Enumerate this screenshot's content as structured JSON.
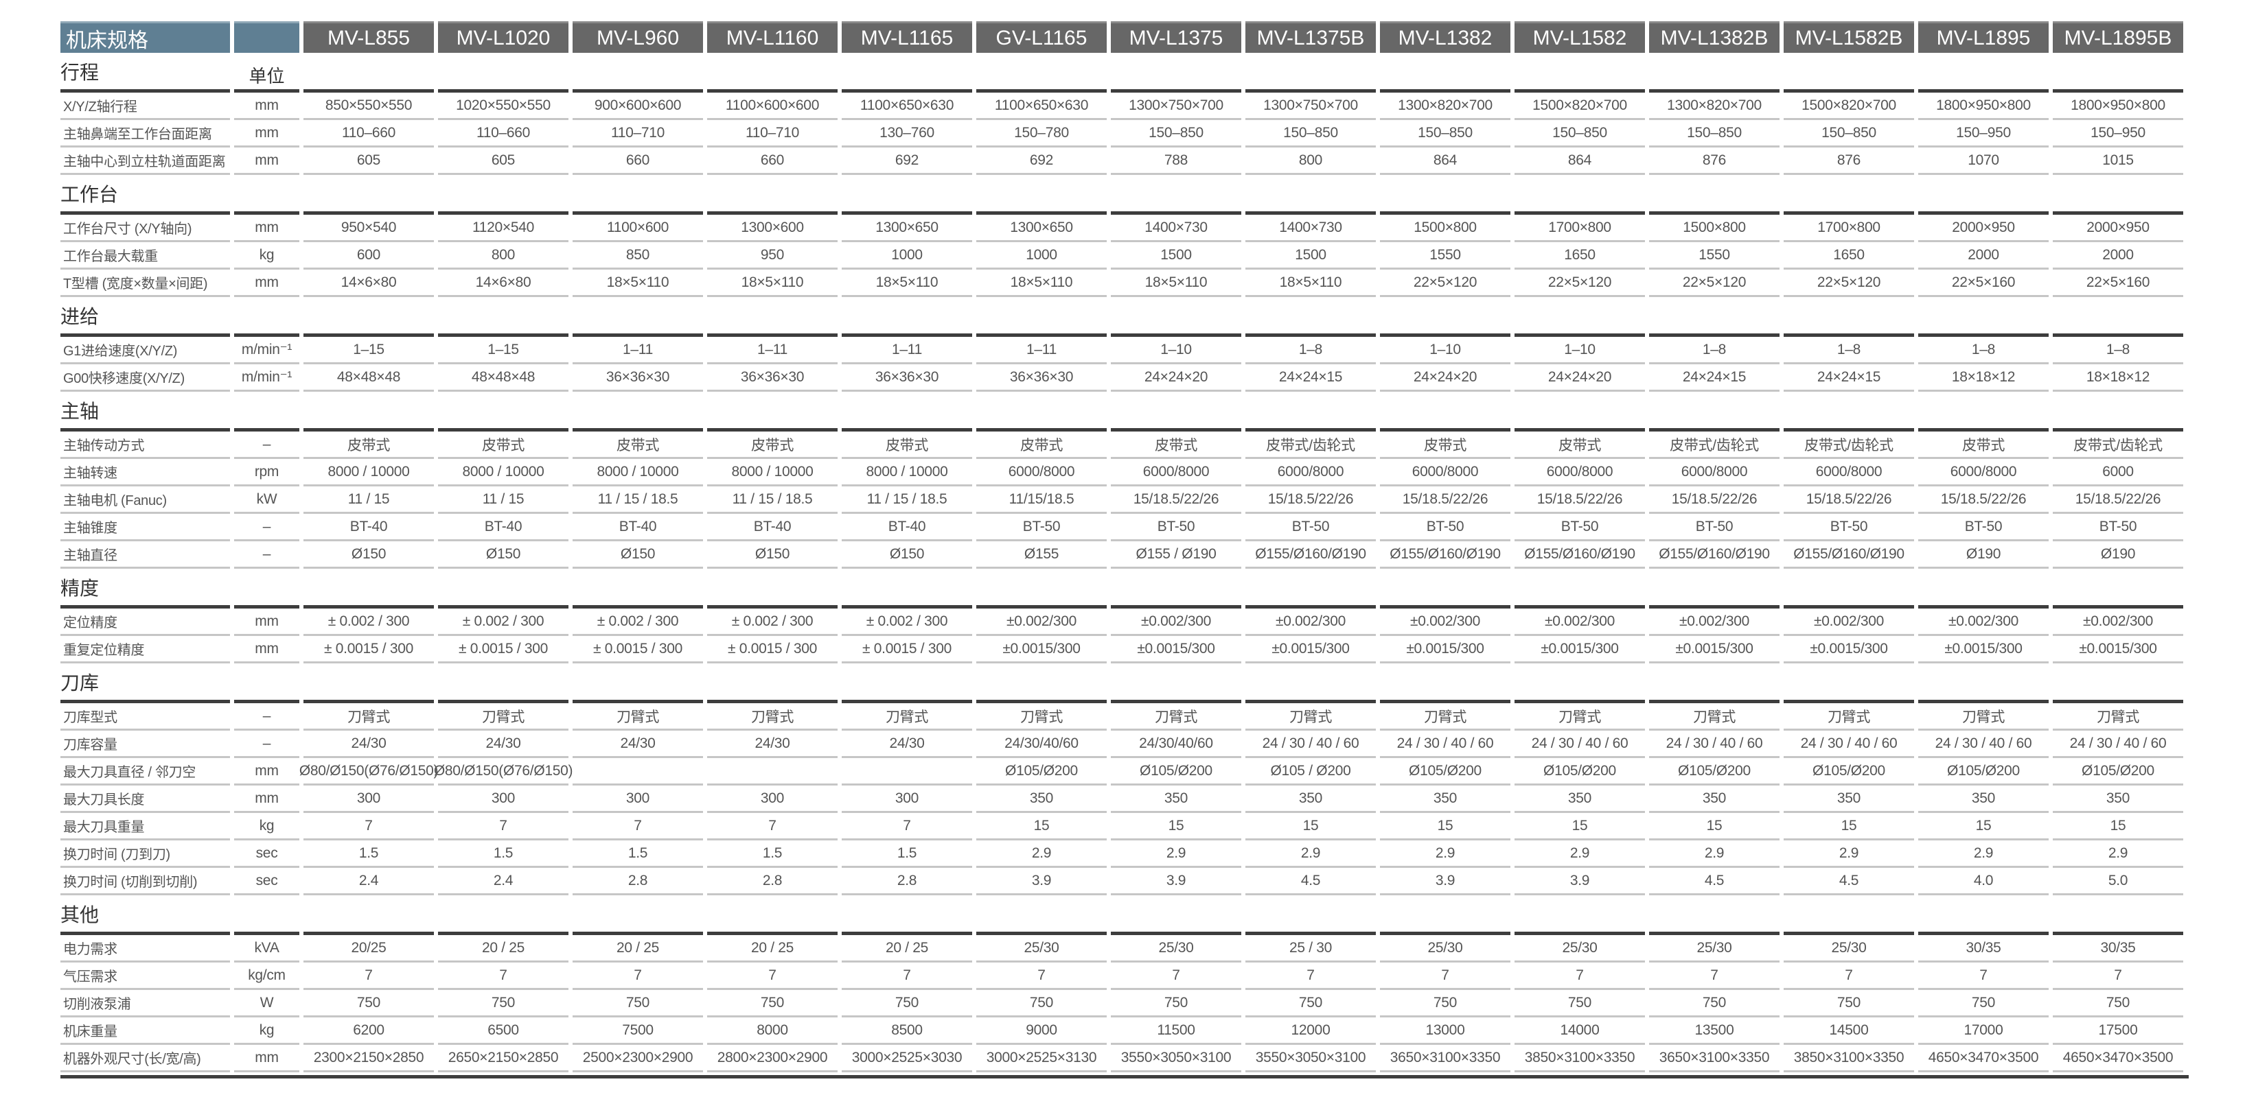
{
  "header": {
    "title": "机床规格",
    "unit": ""
  },
  "models": [
    "MV-L855",
    "MV-L1020",
    "MV-L960",
    "MV-L1160",
    "MV-L1165",
    "GV-L1165",
    "MV-L1375",
    "MV-L1375B",
    "MV-L1382",
    "MV-L1582",
    "MV-L1382B",
    "MV-L1582B",
    "MV-L1895",
    "MV-L1895B"
  ],
  "sections": [
    {
      "title": "行程",
      "unit_header": "单位",
      "rows": [
        {
          "label": "X/Y/Z轴行程",
          "unit": "mm",
          "values": [
            "850×550×550",
            "1020×550×550",
            "900×600×600",
            "1100×600×600",
            "1100×650×630",
            "1100×650×630",
            "1300×750×700",
            "1300×750×700",
            "1300×820×700",
            "1500×820×700",
            "1300×820×700",
            "1500×820×700",
            "1800×950×800",
            "1800×950×800"
          ]
        },
        {
          "label": "主轴鼻端至工作台面距离",
          "unit": "mm",
          "values": [
            "110–660",
            "110–660",
            "110–710",
            "110–710",
            "130–760",
            "150–780",
            "150–850",
            "150–850",
            "150–850",
            "150–850",
            "150–850",
            "150–850",
            "150–950",
            "150–950"
          ]
        },
        {
          "label": "主轴中心到立柱轨道面距离",
          "unit": "mm",
          "values": [
            "605",
            "605",
            "660",
            "660",
            "692",
            "692",
            "788",
            "800",
            "864",
            "864",
            "876",
            "876",
            "1070",
            "1015"
          ]
        }
      ]
    },
    {
      "title": "工作台",
      "rows": [
        {
          "label": "工作台尺寸 (X/Y轴向)",
          "unit": "mm",
          "values": [
            "950×540",
            "1120×540",
            "1100×600",
            "1300×600",
            "1300×650",
            "1300×650",
            "1400×730",
            "1400×730",
            "1500×800",
            "1700×800",
            "1500×800",
            "1700×800",
            "2000×950",
            "2000×950"
          ]
        },
        {
          "label": "工作台最大载重",
          "unit": "kg",
          "values": [
            "600",
            "800",
            "850",
            "950",
            "1000",
            "1000",
            "1500",
            "1500",
            "1550",
            "1650",
            "1550",
            "1650",
            "2000",
            "2000"
          ]
        },
        {
          "label": "T型槽 (宽度×数量×间距)",
          "unit": "mm",
          "values": [
            "14×6×80",
            "14×6×80",
            "18×5×110",
            "18×5×110",
            "18×5×110",
            "18×5×110",
            "18×5×110",
            "18×5×110",
            "22×5×120",
            "22×5×120",
            "22×5×120",
            "22×5×120",
            "22×5×160",
            "22×5×160"
          ]
        }
      ]
    },
    {
      "title": "进给",
      "rows": [
        {
          "label": "G1进给速度(X/Y/Z)",
          "unit": "m/min⁻¹",
          "values": [
            "1–15",
            "1–15",
            "1–11",
            "1–11",
            "1–11",
            "1–11",
            "1–10",
            "1–8",
            "1–10",
            "1–10",
            "1–8",
            "1–8",
            "1–8",
            "1–8"
          ]
        },
        {
          "label": "G00快移速度(X/Y/Z)",
          "unit": "m/min⁻¹",
          "values": [
            "48×48×48",
            "48×48×48",
            "36×36×30",
            "36×36×30",
            "36×36×30",
            "36×36×30",
            "24×24×20",
            "24×24×15",
            "24×24×20",
            "24×24×20",
            "24×24×15",
            "24×24×15",
            "18×18×12",
            "18×18×12"
          ]
        }
      ]
    },
    {
      "title": "主轴",
      "rows": [
        {
          "label": "主轴传动方式",
          "unit": "–",
          "values": [
            "皮带式",
            "皮带式",
            "皮带式",
            "皮带式",
            "皮带式",
            "皮带式",
            "皮带式",
            "皮带式/齿轮式",
            "皮带式",
            "皮带式",
            "皮带式/齿轮式",
            "皮带式/齿轮式",
            "皮带式",
            "皮带式/齿轮式"
          ]
        },
        {
          "label": "主轴转速",
          "unit": "rpm",
          "values": [
            "8000 / 10000",
            "8000 / 10000",
            "8000 / 10000",
            "8000 / 10000",
            "8000 / 10000",
            "6000/8000",
            "6000/8000",
            "6000/8000",
            "6000/8000",
            "6000/8000",
            "6000/8000",
            "6000/8000",
            "6000/8000",
            "6000"
          ]
        },
        {
          "label": "主轴电机 (Fanuc)",
          "unit": "kW",
          "values": [
            "11 / 15",
            "11 / 15",
            "11 / 15 / 18.5",
            "11 / 15 / 18.5",
            "11 / 15 / 18.5",
            "11/15/18.5",
            "15/18.5/22/26",
            "15/18.5/22/26",
            "15/18.5/22/26",
            "15/18.5/22/26",
            "15/18.5/22/26",
            "15/18.5/22/26",
            "15/18.5/22/26",
            "15/18.5/22/26"
          ]
        },
        {
          "label": "主轴锥度",
          "unit": "–",
          "values": [
            "BT-40",
            "BT-40",
            "BT-40",
            "BT-40",
            "BT-40",
            "BT-50",
            "BT-50",
            "BT-50",
            "BT-50",
            "BT-50",
            "BT-50",
            "BT-50",
            "BT-50",
            "BT-50"
          ]
        },
        {
          "label": "主轴直径",
          "unit": "–",
          "values": [
            "Ø150",
            "Ø150",
            "Ø150",
            "Ø150",
            "Ø150",
            "Ø155",
            "Ø155 / Ø190",
            "Ø155/Ø160/Ø190",
            "Ø155/Ø160/Ø190",
            "Ø155/Ø160/Ø190",
            "Ø155/Ø160/Ø190",
            "Ø155/Ø160/Ø190",
            "Ø190",
            "Ø190"
          ]
        }
      ]
    },
    {
      "title": "精度",
      "rows": [
        {
          "label": "定位精度",
          "unit": "mm",
          "values": [
            "± 0.002 / 300",
            "± 0.002 / 300",
            "± 0.002 / 300",
            "± 0.002 / 300",
            "± 0.002 / 300",
            "±0.002/300",
            "±0.002/300",
            "±0.002/300",
            "±0.002/300",
            "±0.002/300",
            "±0.002/300",
            "±0.002/300",
            "±0.002/300",
            "±0.002/300"
          ]
        },
        {
          "label": "重复定位精度",
          "unit": "mm",
          "values": [
            "± 0.0015 / 300",
            "± 0.0015 / 300",
            "± 0.0015 / 300",
            "± 0.0015 / 300",
            "± 0.0015 / 300",
            "±0.0015/300",
            "±0.0015/300",
            "±0.0015/300",
            "±0.0015/300",
            "±0.0015/300",
            "±0.0015/300",
            "±0.0015/300",
            "±0.0015/300",
            "±0.0015/300"
          ]
        }
      ]
    },
    {
      "title": "刀库",
      "rows": [
        {
          "label": "刀库型式",
          "unit": "–",
          "values": [
            "刀臂式",
            "刀臂式",
            "刀臂式",
            "刀臂式",
            "刀臂式",
            "刀臂式",
            "刀臂式",
            "刀臂式",
            "刀臂式",
            "刀臂式",
            "刀臂式",
            "刀臂式",
            "刀臂式",
            "刀臂式"
          ]
        },
        {
          "label": "刀库容量",
          "unit": "–",
          "values": [
            "24/30",
            "24/30",
            "24/30",
            "24/30",
            "24/30",
            "24/30/40/60",
            "24/30/40/60",
            "24 / 30 / 40 / 60",
            "24 / 30 / 40 / 60",
            "24 / 30 / 40 / 60",
            "24 / 30 / 40 / 60",
            "24 / 30 / 40 / 60",
            "24 / 30 / 40 / 60",
            "24 / 30 / 40 / 60"
          ]
        },
        {
          "label": "最大刀具直径 / 邻刀空",
          "unit": "mm",
          "values": [
            "Ø80/Ø150(Ø76/Ø150)",
            "Ø80/Ø150(Ø76/Ø150)",
            "",
            "",
            "",
            "Ø105/Ø200",
            "Ø105/Ø200",
            "Ø105 / Ø200",
            "Ø105/Ø200",
            "Ø105/Ø200",
            "Ø105/Ø200",
            "Ø105/Ø200",
            "Ø105/Ø200",
            "Ø105/Ø200"
          ]
        },
        {
          "label": "最大刀具长度",
          "unit": "mm",
          "values": [
            "300",
            "300",
            "300",
            "300",
            "300",
            "350",
            "350",
            "350",
            "350",
            "350",
            "350",
            "350",
            "350",
            "350"
          ]
        },
        {
          "label": "最大刀具重量",
          "unit": "kg",
          "values": [
            "7",
            "7",
            "7",
            "7",
            "7",
            "15",
            "15",
            "15",
            "15",
            "15",
            "15",
            "15",
            "15",
            "15"
          ]
        },
        {
          "label": "换刀时间 (刀到刀)",
          "unit": "sec",
          "values": [
            "1.5",
            "1.5",
            "1.5",
            "1.5",
            "1.5",
            "2.9",
            "2.9",
            "2.9",
            "2.9",
            "2.9",
            "2.9",
            "2.9",
            "2.9",
            "2.9"
          ]
        },
        {
          "label": "换刀时间 (切削到切削)",
          "unit": "sec",
          "values": [
            "2.4",
            "2.4",
            "2.8",
            "2.8",
            "2.8",
            "3.9",
            "3.9",
            "4.5",
            "3.9",
            "3.9",
            "4.5",
            "4.5",
            "4.0",
            "5.0"
          ]
        }
      ]
    },
    {
      "title": "其他",
      "rows": [
        {
          "label": "电力需求",
          "unit": "kVA",
          "values": [
            "20/25",
            "20 / 25",
            "20 / 25",
            "20 / 25",
            "20 / 25",
            "25/30",
            "25/30",
            "25 / 30",
            "25/30",
            "25/30",
            "25/30",
            "25/30",
            "30/35",
            "30/35"
          ]
        },
        {
          "label": "气压需求",
          "unit": "kg/cm",
          "values": [
            "7",
            "7",
            "7",
            "7",
            "7",
            "7",
            "7",
            "7",
            "7",
            "7",
            "7",
            "7",
            "7",
            "7"
          ]
        },
        {
          "label": "切削液泵浦",
          "unit": "W",
          "values": [
            "750",
            "750",
            "750",
            "750",
            "750",
            "750",
            "750",
            "750",
            "750",
            "750",
            "750",
            "750",
            "750",
            "750"
          ]
        },
        {
          "label": "机床重量",
          "unit": "kg",
          "values": [
            "6200",
            "6500",
            "7500",
            "8000",
            "8500",
            "9000",
            "11500",
            "12000",
            "13000",
            "14000",
            "13500",
            "14500",
            "17000",
            "17500"
          ]
        },
        {
          "label": "机器外观尺寸(长/宽/高)",
          "unit": "mm",
          "values": [
            "2300×2150×2850",
            "2650×2150×2850",
            "2500×2300×2900",
            "2800×2300×2900",
            "3000×2525×3030",
            "3000×2525×3130",
            "3550×3050×3100",
            "3550×3050×3100",
            "3650×3100×3350",
            "3850×3100×3350",
            "3650×3100×3350",
            "3850×3100×3350",
            "4650×3470×3500",
            "4650×3470×3500"
          ]
        }
      ]
    }
  ]
}
